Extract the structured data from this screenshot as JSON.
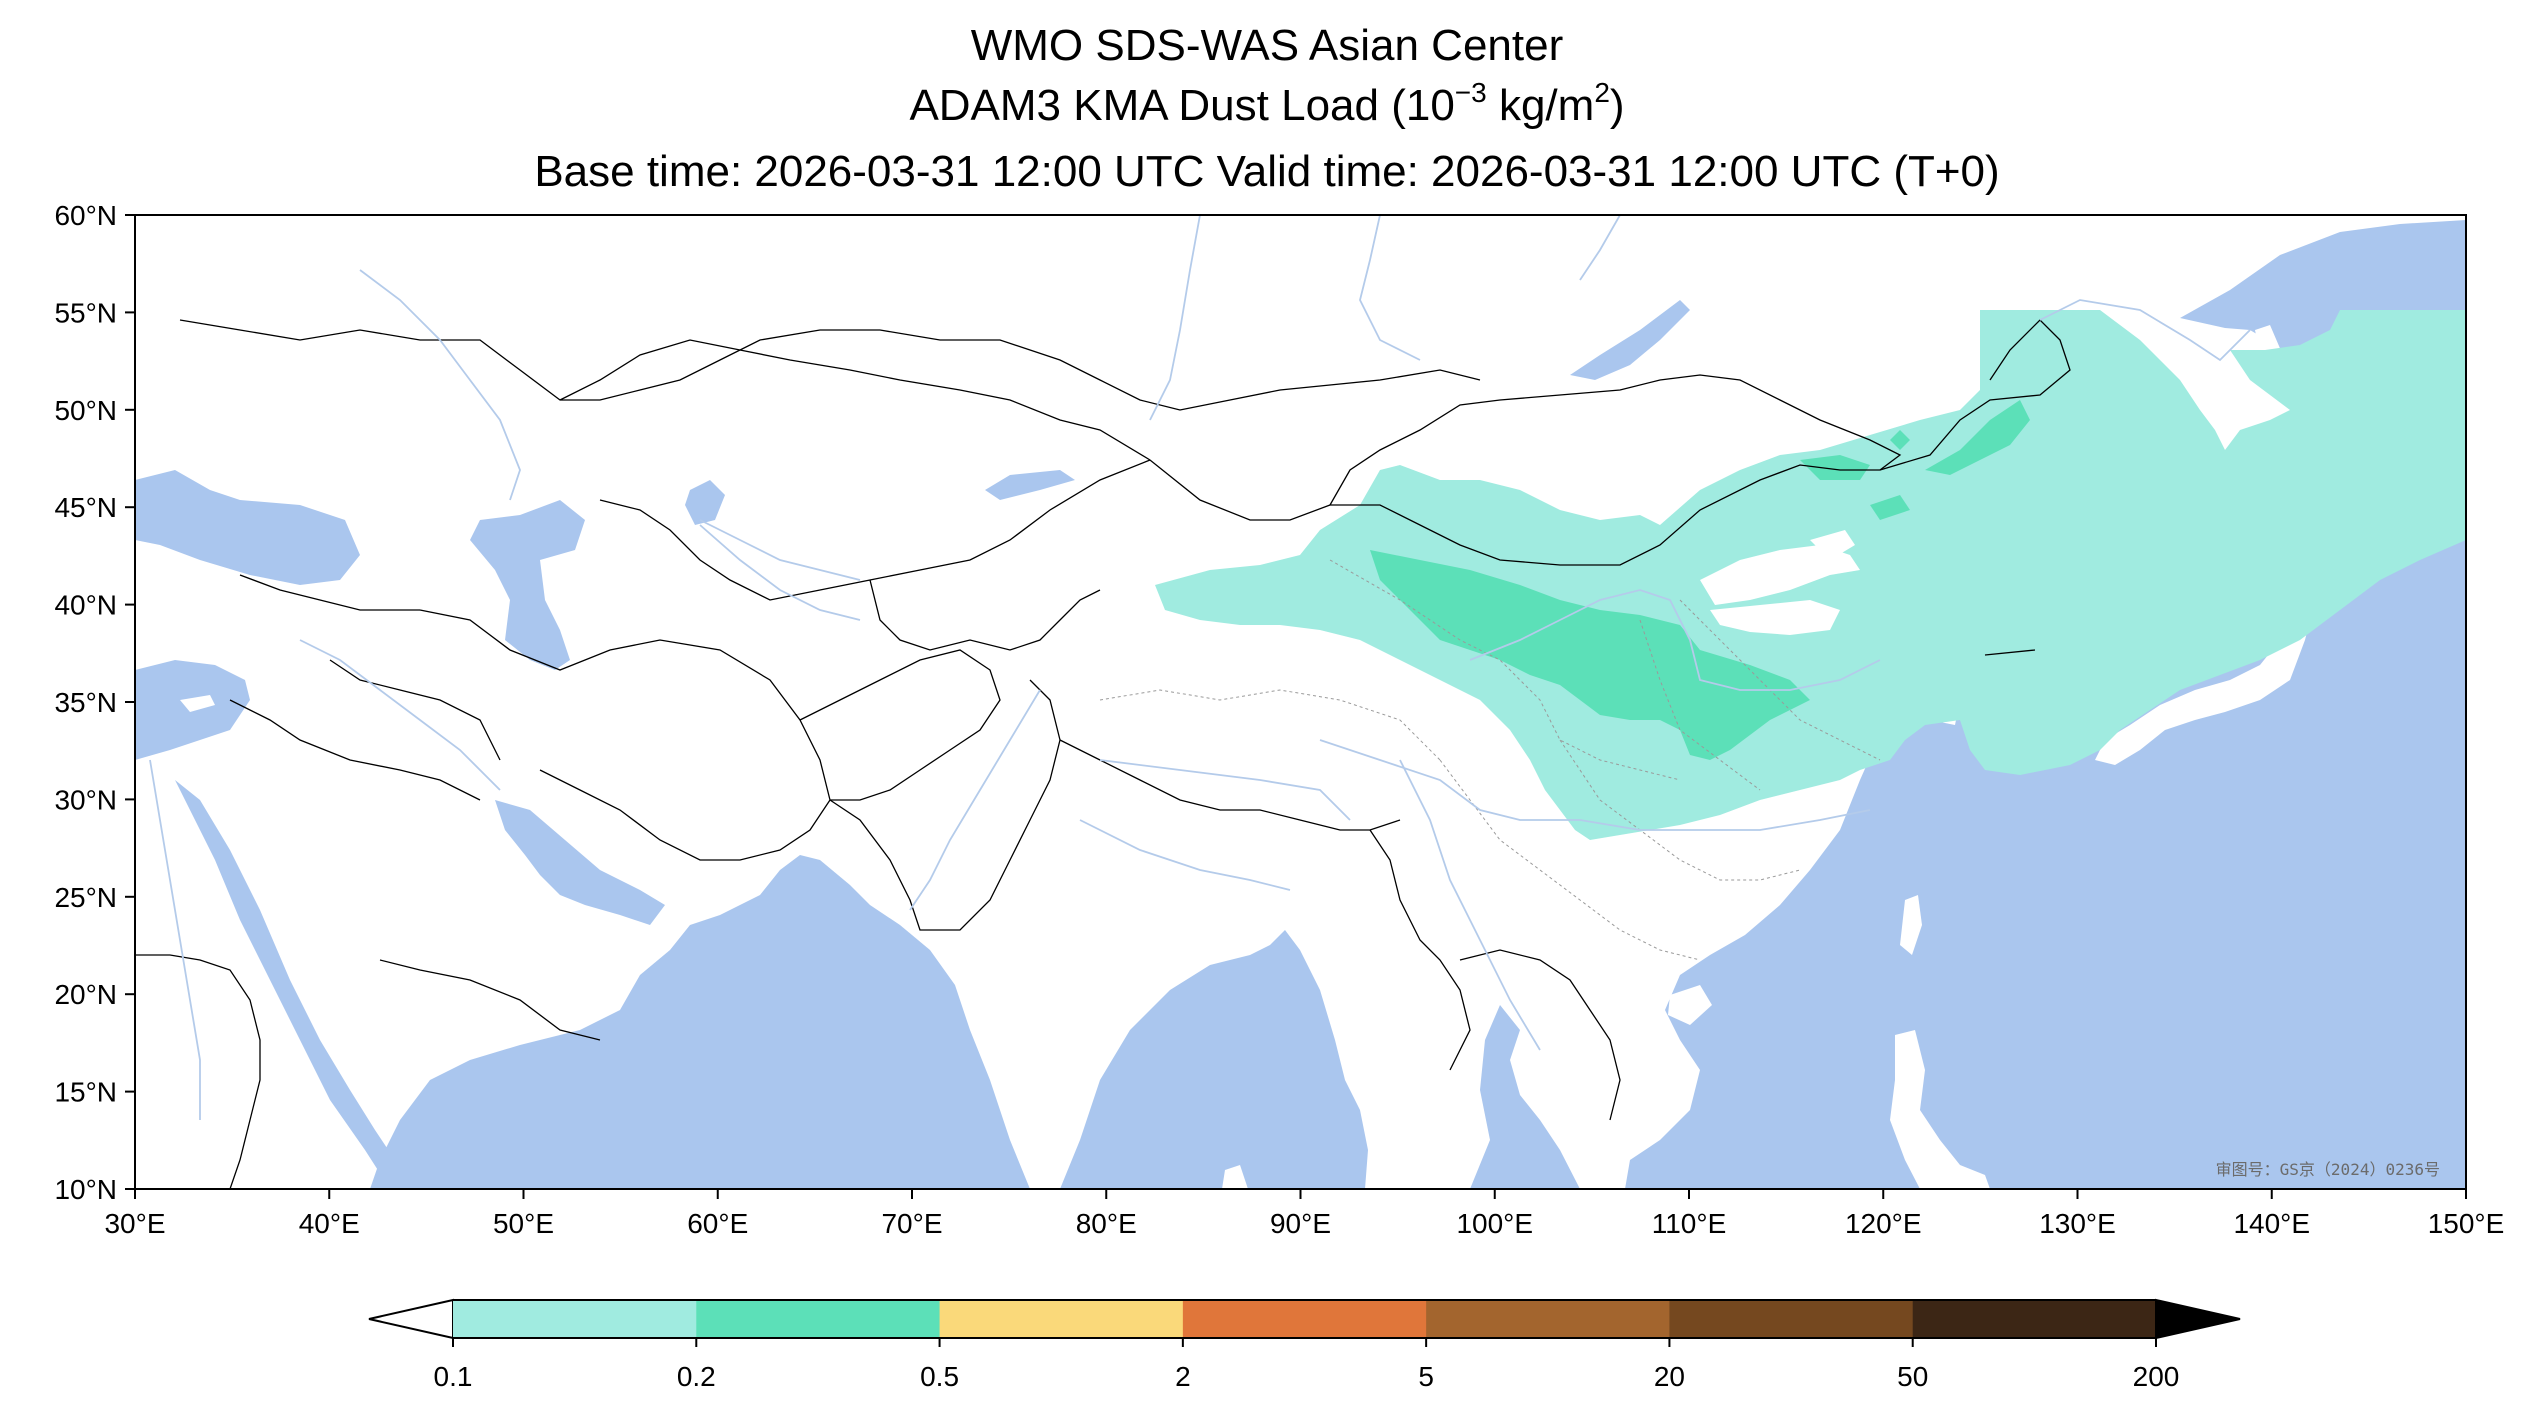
{
  "title": {
    "line1": "WMO SDS-WAS Asian Center",
    "line2_prefix": "ADAM3 KMA Dust Load (10",
    "line2_exp": "−3",
    "line2_mid": " kg/m",
    "line2_exp2": "2",
    "line2_suffix": ")",
    "line3": "Base time: 2026-03-31 12:00 UTC Valid time: 2026-03-31 12:00 UTC (T+0)"
  },
  "map": {
    "lon_range": [
      30,
      150
    ],
    "lat_range": [
      10,
      60
    ],
    "lon_ticks": [
      "30°E",
      "40°E",
      "50°E",
      "60°E",
      "70°E",
      "80°E",
      "90°E",
      "100°E",
      "110°E",
      "120°E",
      "130°E",
      "140°E",
      "150°E"
    ],
    "lat_ticks": [
      "10°N",
      "15°N",
      "20°N",
      "25°N",
      "30°N",
      "35°N",
      "40°N",
      "45°N",
      "50°N",
      "55°N",
      "60°N"
    ],
    "watermark": "审图号：GS京（2024）0236号",
    "ocean_color": "#aac6ee",
    "land_color": "#ffffff",
    "river_color": "#b4cbea"
  },
  "colorbar": {
    "levels": [
      "0.1",
      "0.2",
      "0.5",
      "2",
      "5",
      "20",
      "50",
      "200"
    ],
    "colors": [
      "#a0ebe0",
      "#5ce0b8",
      "#fad97a",
      "#e0763a",
      "#a3652e",
      "#75481f",
      "#3c2615"
    ]
  }
}
